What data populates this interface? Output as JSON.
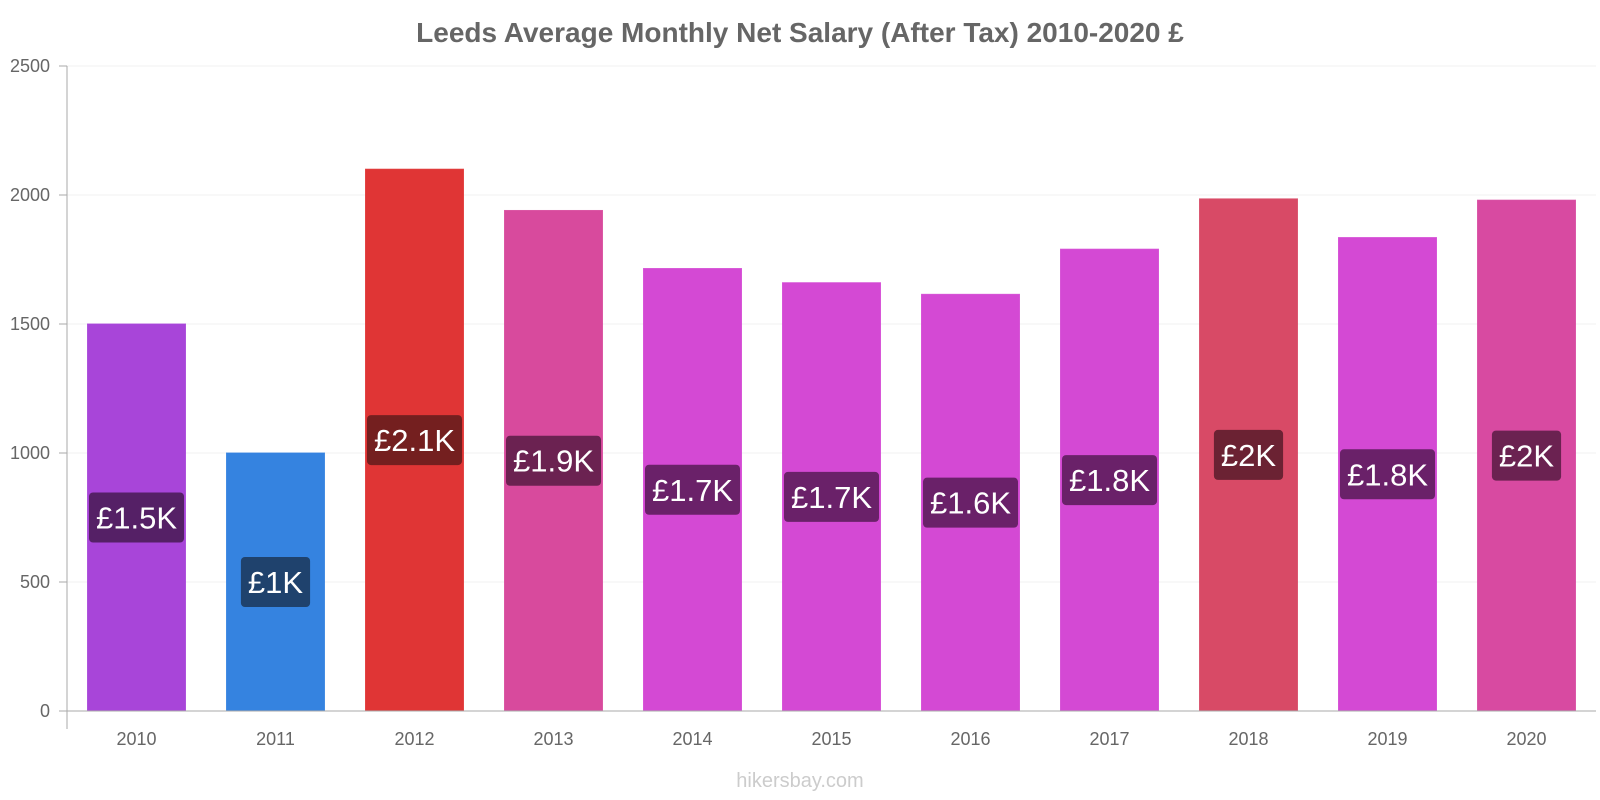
{
  "chart_data": {
    "type": "bar",
    "title": "Leeds Average Monthly Net Salary (After Tax) 2010-2020 £",
    "xlabel": "",
    "ylabel": "",
    "ylim": [
      0,
      2500
    ],
    "yticks": [
      0,
      500,
      1000,
      1500,
      2000,
      2500
    ],
    "ytick_labels": [
      "0",
      "500",
      "1000",
      "1500",
      "2000",
      "2500"
    ],
    "grid": true,
    "legend": "none",
    "categories": [
      "2010",
      "2011",
      "2012",
      "2013",
      "2014",
      "2015",
      "2016",
      "2017",
      "2018",
      "2019",
      "2020"
    ],
    "values": [
      1500,
      1000,
      2100,
      1940,
      1715,
      1660,
      1615,
      1790,
      1985,
      1835,
      1980
    ],
    "data_labels": [
      "£1.5K",
      "£1K",
      "£2.1K",
      "£1.9K",
      "£1.7K",
      "£1.7K",
      "£1.6K",
      "£1.8K",
      "£2K",
      "£1.8K",
      "£2K"
    ],
    "bar_colors": [
      "#a845d9",
      "#3583e0",
      "#e03535",
      "#d84a9d",
      "#d449d4",
      "#d449d4",
      "#d449d4",
      "#d449d4",
      "#d84a66",
      "#d449d4",
      "#d84aa1"
    ],
    "label_bg_colors": [
      "#552066",
      "#1f426d",
      "#741f1f",
      "#6b2251",
      "#6a2169",
      "#6a2169",
      "#6a2169",
      "#6a2169",
      "#6b2233",
      "#6a2169",
      "#6b2251"
    ]
  },
  "watermark": "hikersbay.com"
}
